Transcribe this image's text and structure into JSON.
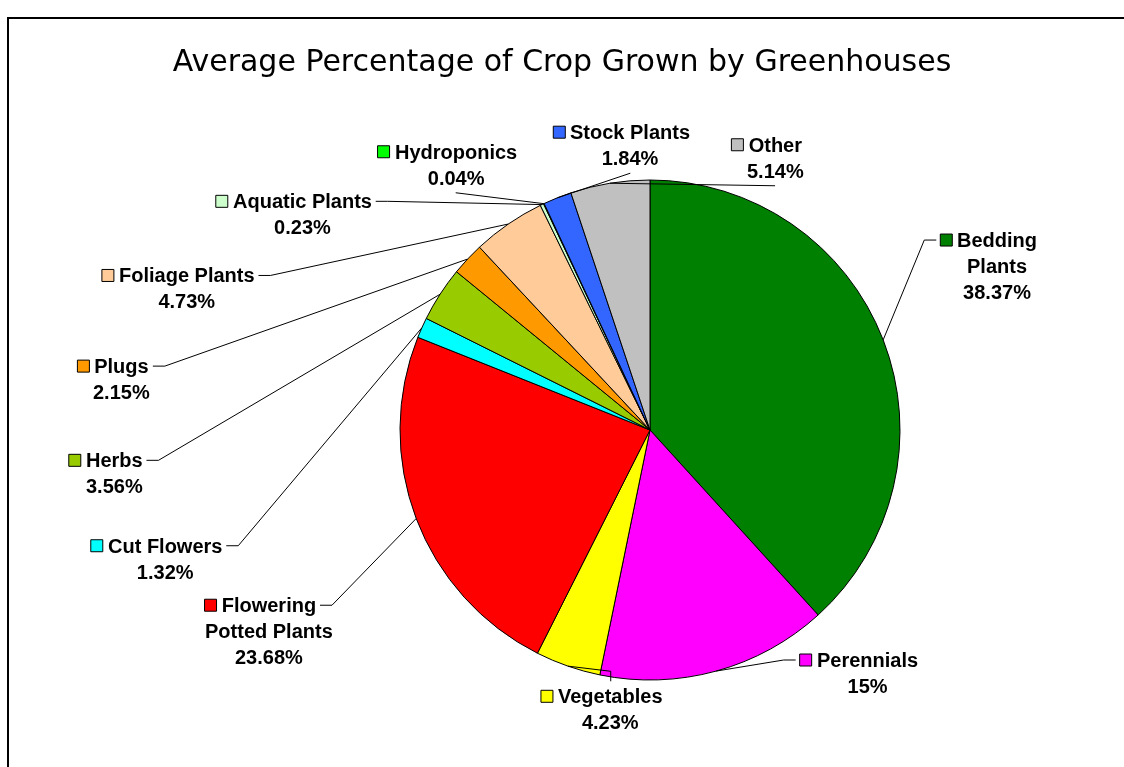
{
  "chart_data": {
    "type": "pie",
    "title": "Average Percentage of Crop Grown by Greenhouses",
    "legend": "top left",
    "categories": [
      "Bedding Plants",
      "Perennials",
      "Vegetables",
      "Flowering Potted Plants",
      "Cut Flowers",
      "Herbs",
      "Plugs",
      "Foliage Plants",
      "Aquatic Plants",
      "Hydroponics",
      "Stock Plants",
      "Other"
    ],
    "values": [
      38.37,
      15,
      4.23,
      23.68,
      1.32,
      3.56,
      2.15,
      4.73,
      0.23,
      0.04,
      1.84,
      5.14
    ],
    "colors": [
      "#008000",
      "#ff00ff",
      "#ffff00",
      "#ff0000",
      "#00ffff",
      "#99cc00",
      "#ff9900",
      "#ffcc99",
      "#ccffcc",
      "#00ff00",
      "#3366ff",
      "#c0c0c0"
    ],
    "value_labels": [
      "38.37%",
      "15%",
      "4.23%",
      "23.68%",
      "1.32%",
      "3.56%",
      "2.15%",
      "4.73%",
      "0.23%",
      "0.04%",
      "1.84%",
      "5.14%"
    ]
  }
}
